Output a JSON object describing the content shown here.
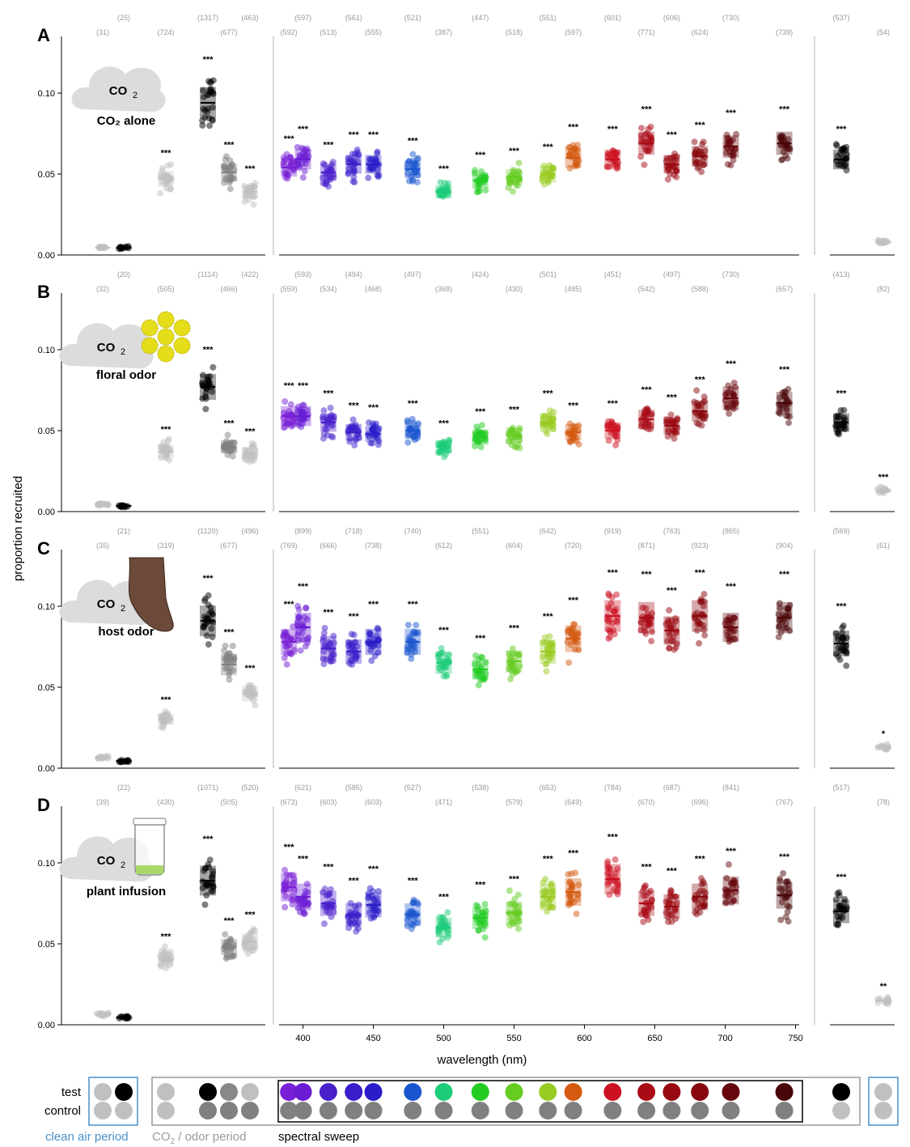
{
  "chart_data": {
    "type": "scatter",
    "y_axis_label": "proportion recruited",
    "x_axis_label": "wavelength (nm)",
    "y_ticks": [
      0.0,
      0.05,
      0.1
    ],
    "y_tick_labels": [
      "0.00",
      "0.05",
      "0.10"
    ],
    "ylim": [
      0,
      0.13
    ],
    "x_ticks": [
      400,
      450,
      500,
      550,
      600,
      650,
      700,
      750
    ],
    "x_tick_labels": [
      "400",
      "450",
      "500",
      "550",
      "600",
      "650",
      "700",
      "750"
    ],
    "xlim": [
      383,
      752
    ],
    "wavelengths": [
      390,
      400,
      418,
      436,
      450,
      478,
      500,
      526,
      550,
      574,
      592,
      620,
      644,
      662,
      682,
      704,
      742
    ],
    "wavelength_colors": [
      "#7a1fd6",
      "#6a1bd4",
      "#4a20cc",
      "#3a1ec9",
      "#2a1cc8",
      "#1a55d0",
      "#1ccc7a",
      "#22cc22",
      "#66cc22",
      "#99cc22",
      "#d45a10",
      "#cc1122",
      "#aa0a16",
      "#990810",
      "#88080e",
      "#66060c",
      "#4a0508"
    ],
    "left_colors": [
      "#c0c0c0",
      "#000000",
      "#c0c0c0",
      "#000000",
      "#808080",
      "#c0c0c0"
    ],
    "right_colors": [
      "#000000",
      "#c0c0c0"
    ],
    "panels": [
      {
        "label": "A",
        "condition": "CO₂ alone",
        "icon": "co2-cloud-icon",
        "left_medians": [
          0.0045,
          0.0045,
          0.047,
          0.094,
          0.051,
          0.039
        ],
        "left_sig": [
          "",
          "",
          "***",
          "***",
          "***",
          "***"
        ],
        "left_n": [
          "(31)",
          "(25)",
          "(724)",
          "(1317)",
          "(677)",
          "(463)"
        ],
        "spectral_medians": [
          0.054,
          0.059,
          0.051,
          0.056,
          0.056,
          0.053,
          0.039,
          0.046,
          0.048,
          0.05,
          0.06,
          0.059,
          0.069,
          0.056,
          0.061,
          0.067,
          0.069
        ],
        "spectral_sig": [
          "***",
          "***",
          "***",
          "***",
          "***",
          "***",
          "***",
          "***",
          "***",
          "***",
          "***",
          "***",
          "***",
          "***",
          "***",
          "***",
          "***"
        ],
        "spectral_n": [
          "(592)",
          "(597)",
          "(513)",
          "(561)",
          "(555)",
          "(521)",
          "(387)",
          "(447)",
          "(518)",
          "(551)",
          "(597)",
          "(601)",
          "(771)",
          "(606)",
          "(624)",
          "(730)",
          "(739)"
        ],
        "right_medians": [
          0.059,
          0.008
        ],
        "right_sig": [
          "***",
          ""
        ],
        "right_n": [
          "(537)",
          "(54)"
        ]
      },
      {
        "label": "B",
        "condition": "floral odor",
        "icon": "co2-cloud-flower-icon",
        "left_medians": [
          0.0045,
          0.0035,
          0.037,
          0.077,
          0.04,
          0.036
        ],
        "left_sig": [
          "",
          "",
          "***",
          "***",
          "***",
          "***"
        ],
        "left_n": [
          "(32)",
          "(20)",
          "(505)",
          "(1114)",
          "(466)",
          "(422)"
        ],
        "spectral_medians": [
          0.059,
          0.059,
          0.055,
          0.049,
          0.048,
          0.05,
          0.04,
          0.046,
          0.047,
          0.055,
          0.049,
          0.05,
          0.057,
          0.053,
          0.062,
          0.07,
          0.067
        ],
        "spectral_sig": [
          "***",
          "***",
          "***",
          "***",
          "***",
          "***",
          "***",
          "***",
          "***",
          "***",
          "***",
          "***",
          "***",
          "***",
          "***",
          "***",
          "***"
        ],
        "spectral_n": [
          "(559)",
          "(593)",
          "(534)",
          "(494)",
          "(468)",
          "(497)",
          "(368)",
          "(424)",
          "(430)",
          "(501)",
          "(485)",
          "(451)",
          "(542)",
          "(497)",
          "(588)",
          "(730)",
          "(657)"
        ],
        "right_medians": [
          0.055,
          0.013
        ],
        "right_sig": [
          "***",
          "***"
        ],
        "right_n": [
          "(413)",
          "(82)"
        ]
      },
      {
        "label": "C",
        "condition": "host odor",
        "icon": "co2-cloud-foot-icon",
        "left_medians": [
          0.0065,
          0.0045,
          0.03,
          0.091,
          0.064,
          0.046
        ],
        "left_sig": [
          "",
          "",
          "***",
          "***",
          "***",
          "***"
        ],
        "left_n": [
          "(35)",
          "(21)",
          "(319)",
          "(1120)",
          "(677)",
          "(496)"
        ],
        "spectral_medians": [
          0.078,
          0.087,
          0.074,
          0.072,
          0.078,
          0.078,
          0.065,
          0.061,
          0.066,
          0.072,
          0.08,
          0.094,
          0.093,
          0.085,
          0.094,
          0.087,
          0.093
        ],
        "spectral_sig": [
          "***",
          "***",
          "***",
          "***",
          "***",
          "***",
          "***",
          "***",
          "***",
          "***",
          "***",
          "***",
          "***",
          "***",
          "***",
          "***",
          "***"
        ],
        "spectral_n": [
          "(769)",
          "(899)",
          "(666)",
          "(718)",
          "(738)",
          "(740)",
          "(612)",
          "(551)",
          "(604)",
          "(642)",
          "(720)",
          "(919)",
          "(871)",
          "(763)",
          "(923)",
          "(865)",
          "(904)"
        ],
        "right_medians": [
          0.077,
          0.013
        ],
        "right_sig": [
          "***",
          "*"
        ],
        "right_n": [
          "(569)",
          "(61)"
        ]
      },
      {
        "label": "D",
        "condition": "plant infusion",
        "icon": "co2-cloud-jar-icon",
        "left_medians": [
          0.0065,
          0.0045,
          0.04,
          0.089,
          0.048,
          0.051
        ],
        "left_sig": [
          "",
          "",
          "***",
          "***",
          "***",
          "***"
        ],
        "left_n": [
          "(39)",
          "(22)",
          "(430)",
          "(1071)",
          "(505)",
          "(520)"
        ],
        "spectral_medians": [
          0.085,
          0.079,
          0.075,
          0.068,
          0.074,
          0.068,
          0.06,
          0.066,
          0.069,
          0.079,
          0.082,
          0.09,
          0.075,
          0.073,
          0.079,
          0.083,
          0.08
        ],
        "spectral_sig": [
          "***",
          "***",
          "***",
          "***",
          "***",
          "***",
          "***",
          "***",
          "***",
          "***",
          "***",
          "***",
          "***",
          "***",
          "***",
          "***",
          "***"
        ],
        "spectral_n": [
          "(673)",
          "(621)",
          "(603)",
          "(585)",
          "(603)",
          "(527)",
          "(471)",
          "(538)",
          "(579)",
          "(653)",
          "(649)",
          "(784)",
          "(670)",
          "(687)",
          "(696)",
          "(841)",
          "(767)"
        ],
        "right_medians": [
          0.07,
          0.015
        ],
        "right_sig": [
          "***",
          "**"
        ],
        "right_n": [
          "(517)",
          "(78)"
        ]
      }
    ]
  },
  "legend": {
    "test_label": "test",
    "control_label": "control",
    "clean_air_label": "clean air period",
    "co2_odor_label_pre": "CO",
    "co2_odor_sub": "2",
    "co2_odor_label_post": " / odor period",
    "spectral_label": "spectral sweep",
    "clean_air_color": "#4a90c8",
    "odor_box_color": "#9a9a9a",
    "test_left": [
      "#c0c0c0",
      "#000000",
      "#c0c0c0",
      "#000000",
      "#888888",
      "#c0c0c0"
    ],
    "control_left": [
      "#c0c0c0",
      "#c0c0c0",
      "#c0c0c0",
      "#808080",
      "#808080",
      "#808080"
    ],
    "test_right": [
      "#000000",
      "#c0c0c0"
    ],
    "control_right": [
      "#c0c0c0",
      "#c0c0c0"
    ],
    "control_spectral": "#808080"
  },
  "icon_text": {
    "co2_main": "CO",
    "co2_sub": "2"
  }
}
